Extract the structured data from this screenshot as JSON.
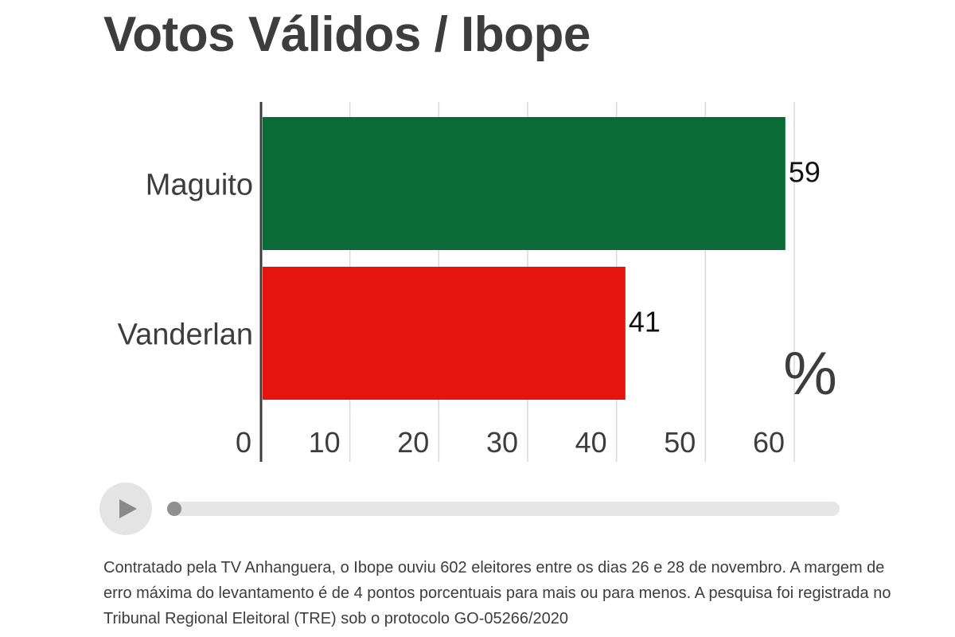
{
  "title": "Votos Válidos / Ibope",
  "chart_data": {
    "type": "bar",
    "orientation": "horizontal",
    "categories": [
      "Maguito",
      "Vanderlan"
    ],
    "values": [
      59,
      41
    ],
    "value_labels": [
      "59",
      "41"
    ],
    "xlim": [
      0,
      60
    ],
    "x_ticks": [
      "0",
      "10",
      "20",
      "30",
      "40",
      "50",
      "60"
    ],
    "unit_label": "%",
    "grid": "vertical",
    "colors": [
      "#0a6b36",
      "#e4150c"
    ]
  },
  "player": {
    "progress": 0,
    "play_icon": "play-icon"
  },
  "footnote": "Contratado pela TV Anhanguera, o Ibope ouviu 602 eleitores entre os dias 26 e 28 de novembro. A margem de erro máxima do levantamento é de 4 pontos porcentuais para mais ou para menos. A pesquisa foi registrada no Tribunal Regional Eleitoral (TRE) sob o protocolo GO-05266/2020"
}
